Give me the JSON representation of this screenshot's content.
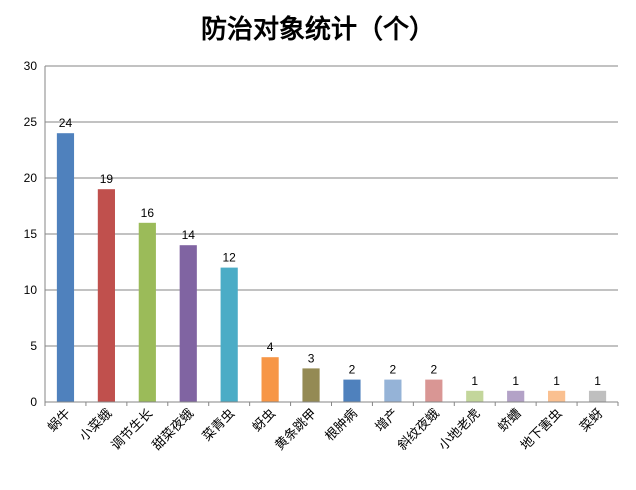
{
  "chart_data": {
    "type": "bar",
    "title": "防治对象统计（个）",
    "xlabel": "",
    "ylabel": "",
    "ylim": [
      0,
      30
    ],
    "yticks": [
      0,
      5,
      10,
      15,
      20,
      25,
      30
    ],
    "grid": true,
    "legend": "none",
    "categories": [
      "蜗牛",
      "小菜蛾",
      "调节生长",
      "甜菜夜蛾",
      "菜青虫",
      "蚜虫",
      "黄条跳甲",
      "根肿病",
      "增产",
      "斜纹夜蛾",
      "小地老虎",
      "蛴螬",
      "地下害虫",
      "菜蚜"
    ],
    "values": [
      24,
      19,
      16,
      14,
      12,
      4,
      3,
      2,
      2,
      2,
      1,
      1,
      1,
      1
    ],
    "colors": [
      "#4F81BD",
      "#C0504D",
      "#9BBB59",
      "#8064A2",
      "#4BACC6",
      "#F79646",
      "#948A54",
      "#4F81BD",
      "#95B3D7",
      "#D99694",
      "#C3D69B",
      "#B3A2C7",
      "#FAC090",
      "#BFBFBF"
    ]
  }
}
